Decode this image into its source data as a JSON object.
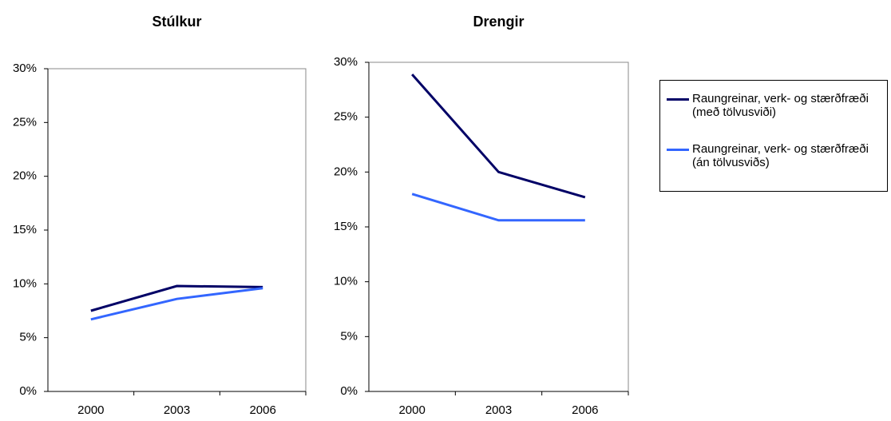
{
  "chart_data": [
    {
      "type": "line",
      "title": "Stúlkur",
      "categories": [
        "2000",
        "2003",
        "2006"
      ],
      "series": [
        {
          "color": "#000066",
          "values": [
            7.5,
            9.8,
            9.7
          ]
        },
        {
          "color": "#3366ff",
          "values": [
            6.7,
            8.6,
            9.6
          ]
        }
      ],
      "ylim": [
        0,
        30
      ],
      "yticks": [
        {
          "value": 0,
          "label": "0%"
        },
        {
          "value": 5,
          "label": "5%"
        },
        {
          "value": 10,
          "label": "10%"
        },
        {
          "value": 15,
          "label": "15%"
        },
        {
          "value": 20,
          "label": "20%"
        },
        {
          "value": 25,
          "label": "25%"
        },
        {
          "value": 30,
          "label": "30%"
        }
      ]
    },
    {
      "type": "line",
      "title": "Drengir",
      "categories": [
        "2000",
        "2003",
        "2006"
      ],
      "series": [
        {
          "name": "Raungreinar, verk- og stærðfræði (með tölvusviði)",
          "color": "#000066",
          "values": [
            28.9,
            20.0,
            17.7
          ]
        },
        {
          "name": "Raungreinar, verk- og stærðfræði (án tölvusviðs)",
          "color": "#3366ff",
          "values": [
            18.0,
            15.6,
            15.6
          ]
        }
      ],
      "ylim": [
        0,
        30
      ],
      "yticks": [
        {
          "value": 0,
          "label": "0%"
        },
        {
          "value": 5,
          "label": "5%"
        },
        {
          "value": 10,
          "label": "10%"
        },
        {
          "value": 15,
          "label": "15%"
        },
        {
          "value": 20,
          "label": "20%"
        },
        {
          "value": 25,
          "label": "25%"
        },
        {
          "value": 30,
          "label": "30%"
        }
      ]
    }
  ]
}
